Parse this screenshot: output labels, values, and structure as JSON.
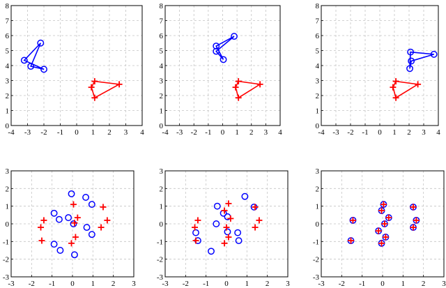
{
  "colors": {
    "blue": "#0000ff",
    "red": "#ff0000"
  },
  "chart_data": [
    {
      "type": "scatter",
      "grid": true,
      "xlim": [
        -4,
        4
      ],
      "ylim": [
        0,
        8
      ],
      "xticks": [
        "-4",
        "-3",
        "-2",
        "-1",
        "0",
        "1",
        "2",
        "3",
        "4"
      ],
      "yticks": [
        "0",
        "1",
        "2",
        "3",
        "4",
        "5",
        "6",
        "7",
        "8"
      ],
      "series": [
        {
          "marker": "circle",
          "color": "blue",
          "closed": true,
          "x": [
            -2.2,
            -3.2,
            -2.0,
            -2.8
          ],
          "y": [
            5.5,
            4.35,
            3.75,
            3.95
          ]
        },
        {
          "marker": "plus",
          "color": "red",
          "closed": true,
          "x": [
            2.6,
            1.1,
            0.9,
            1.1
          ],
          "y": [
            2.75,
            2.95,
            2.55,
            1.85
          ]
        }
      ]
    },
    {
      "type": "scatter",
      "grid": true,
      "xlim": [
        -4,
        4
      ],
      "ylim": [
        0,
        8
      ],
      "xticks": [
        "-4",
        "-3",
        "-2",
        "-1",
        "0",
        "1",
        "2",
        "3",
        "4"
      ],
      "yticks": [
        "0",
        "1",
        "2",
        "3",
        "4",
        "5",
        "6",
        "7",
        "8"
      ],
      "series": [
        {
          "marker": "circle",
          "color": "blue",
          "closed": true,
          "x": [
            0.8,
            -0.45,
            0.05,
            -0.45
          ],
          "y": [
            5.95,
            5.3,
            4.4,
            4.95
          ]
        },
        {
          "marker": "plus",
          "color": "red",
          "closed": true,
          "x": [
            2.6,
            1.1,
            0.9,
            1.1
          ],
          "y": [
            2.75,
            2.95,
            2.55,
            1.85
          ]
        }
      ]
    },
    {
      "type": "scatter",
      "grid": true,
      "xlim": [
        -4,
        4
      ],
      "ylim": [
        0,
        8
      ],
      "xticks": [
        "-4",
        "-3",
        "-2",
        "-1",
        "0",
        "1",
        "2",
        "3",
        "4"
      ],
      "yticks": [
        "0",
        "1",
        "2",
        "3",
        "4",
        "5",
        "6",
        "7",
        "8"
      ],
      "series": [
        {
          "marker": "circle",
          "color": "blue",
          "closed": true,
          "x": [
            3.7,
            2.1,
            2.05,
            2.15
          ],
          "y": [
            4.75,
            4.9,
            3.8,
            4.3
          ]
        },
        {
          "marker": "plus",
          "color": "red",
          "closed": true,
          "x": [
            2.6,
            1.1,
            0.9,
            1.1
          ],
          "y": [
            2.75,
            2.95,
            2.55,
            1.85
          ]
        }
      ]
    },
    {
      "type": "scatter",
      "grid": true,
      "xlim": [
        -3,
        3
      ],
      "ylim": [
        -3,
        3
      ],
      "xticks": [
        "-3",
        "-2",
        "-1",
        "0",
        "1",
        "2",
        "3"
      ],
      "yticks": [
        "-3",
        "-2",
        "-1",
        "0",
        "1",
        "2",
        "3"
      ],
      "series": [
        {
          "marker": "circle",
          "color": "blue",
          "x": [
            -0.05,
            0.65,
            0.95,
            -0.9,
            -0.65,
            -0.2,
            0.05,
            0.7,
            0.95,
            -0.9,
            -0.6,
            0.1
          ],
          "y": [
            1.7,
            1.5,
            1.1,
            0.6,
            0.25,
            0.35,
            0.0,
            -0.2,
            -0.6,
            -1.15,
            -1.5,
            -1.75
          ]
        },
        {
          "marker": "plus",
          "color": "red",
          "x": [
            0.05,
            1.5,
            -1.4,
            0.25,
            1.7,
            -1.55,
            0.1,
            1.4,
            -1.5,
            0.15,
            -0.05
          ],
          "y": [
            1.1,
            0.95,
            0.2,
            0.35,
            0.2,
            -0.2,
            0.05,
            -0.2,
            -0.95,
            -0.75,
            -1.1
          ]
        }
      ]
    },
    {
      "type": "scatter",
      "grid": true,
      "xlim": [
        -3,
        3
      ],
      "ylim": [
        -3,
        3
      ],
      "xticks": [
        "-3",
        "-2",
        "-1",
        "0",
        "1",
        "2",
        "3"
      ],
      "yticks": [
        "-3",
        "-2",
        "-1",
        "0",
        "1",
        "2",
        "3"
      ],
      "series": [
        {
          "marker": "circle",
          "color": "blue",
          "x": [
            0.9,
            -0.45,
            1.35,
            -0.15,
            0.05,
            -0.5,
            0.55,
            0.05,
            -1.5,
            0.6,
            -1.4,
            -0.75
          ],
          "y": [
            1.55,
            1.0,
            0.95,
            0.6,
            0.4,
            0.0,
            -0.5,
            -0.45,
            -0.5,
            -0.95,
            -0.95,
            -1.55
          ]
        },
        {
          "marker": "plus",
          "color": "red",
          "x": [
            0.1,
            -0.1,
            1.4,
            -1.4,
            0.2,
            1.6,
            -1.55,
            0.0,
            1.4,
            -1.5,
            0.1,
            -0.1
          ],
          "y": [
            1.15,
            0.75,
            0.95,
            0.2,
            0.3,
            0.2,
            -0.2,
            -0.2,
            -0.2,
            -0.95,
            -0.75,
            -1.1
          ]
        }
      ]
    },
    {
      "type": "scatter",
      "grid": true,
      "xlim": [
        -3,
        3
      ],
      "ylim": [
        -3,
        3
      ],
      "xticks": [
        "-3",
        "-2",
        "-1",
        "0",
        "1",
        "2",
        "3"
      ],
      "yticks": [
        "-3",
        "-2",
        "-1",
        "0",
        "1",
        "2",
        "3"
      ],
      "series": [
        {
          "marker": "circle",
          "color": "blue",
          "x": [
            0.05,
            1.5,
            -0.05,
            0.3,
            1.65,
            -1.45,
            0.1,
            -0.2,
            1.5,
            -1.55,
            0.15,
            -0.05
          ],
          "y": [
            1.1,
            0.95,
            0.75,
            0.35,
            0.2,
            0.2,
            0.0,
            -0.4,
            -0.2,
            -0.95,
            -0.75,
            -1.1
          ]
        },
        {
          "marker": "plus",
          "color": "red",
          "x": [
            0.05,
            1.5,
            -0.05,
            0.3,
            1.65,
            -1.45,
            0.1,
            -0.2,
            1.5,
            -1.55,
            0.15,
            -0.05
          ],
          "y": [
            1.1,
            0.95,
            0.75,
            0.35,
            0.2,
            0.2,
            0.0,
            -0.4,
            -0.2,
            -0.95,
            -0.75,
            -1.1
          ]
        }
      ]
    }
  ]
}
